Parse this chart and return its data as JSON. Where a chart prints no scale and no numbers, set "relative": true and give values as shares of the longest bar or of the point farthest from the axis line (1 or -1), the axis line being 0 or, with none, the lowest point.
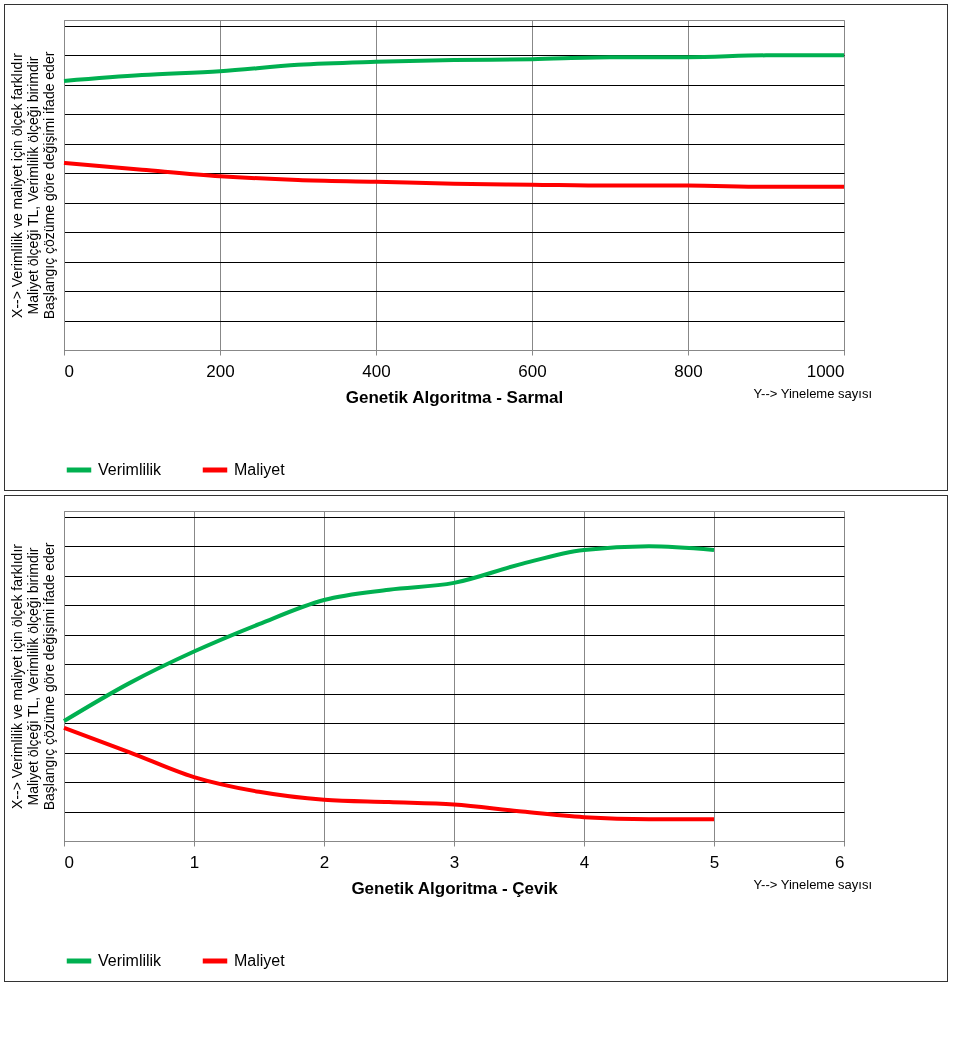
{
  "chart_data": [
    {
      "type": "line",
      "relative": true,
      "xlabel": "Genetik Algoritma - Sarmal",
      "ylabel": "X--> Verimlilik ve maliyet için ölçek farklıdır\nMaliyet ölçeği TL, Verimlilik ölçeği birimdir\nBaşlangıç çözüme göre değişimi ifade eder",
      "annotations": [
        "Y--> Yineleme sayısı"
      ],
      "xlim": [
        0,
        1000
      ],
      "xticks": [
        0,
        200,
        400,
        600,
        800,
        1000
      ],
      "grid": true,
      "legend": "bottom",
      "x": [
        0,
        100,
        200,
        300,
        400,
        500,
        600,
        700,
        800,
        900,
        1000
      ],
      "series": [
        {
          "name": "Verimlilik",
          "color": "#00b050",
          "values": [
            0.913,
            0.933,
            0.946,
            0.968,
            0.978,
            0.984,
            0.987,
            0.994,
            0.994,
            1,
            1
          ]
        },
        {
          "name": "Maliyet",
          "color": "#ff0000",
          "values": [
            0.635,
            0.612,
            0.59,
            0.577,
            0.571,
            0.564,
            0.561,
            0.558,
            0.558,
            0.554,
            0.554
          ]
        }
      ]
    },
    {
      "type": "line",
      "relative": true,
      "xlabel": "Genetik Algoritma - Çevik",
      "ylabel": "X--> Verimlilik ve maliyet için ölçek farklıdır\nMaliyet ölçeği TL, Verimlilik ölçeği birimdir\nBaşlangıç çözüme göre değişimi ifade eder",
      "annotations": [
        "Y--> Yineleme sayısı"
      ],
      "xlim": [
        0,
        6
      ],
      "xticks": [
        0,
        1,
        2,
        3,
        4,
        5,
        6
      ],
      "grid": true,
      "legend": "bottom",
      "x": [
        0,
        0.5,
        1,
        1.5,
        2,
        2.5,
        3,
        3.5,
        4,
        4.5,
        5
      ],
      "series": [
        {
          "name": "Verimlilik",
          "color": "#00b050",
          "values": [
            0.407,
            0.535,
            0.643,
            0.736,
            0.818,
            0.853,
            0.876,
            0.938,
            0.988,
            1,
            0.988
          ]
        },
        {
          "name": "Maliyet",
          "color": "#ff0000",
          "values": [
            0.384,
            0.302,
            0.217,
            0.167,
            0.14,
            0.132,
            0.124,
            0.101,
            0.081,
            0.074,
            0.074
          ]
        }
      ]
    }
  ]
}
